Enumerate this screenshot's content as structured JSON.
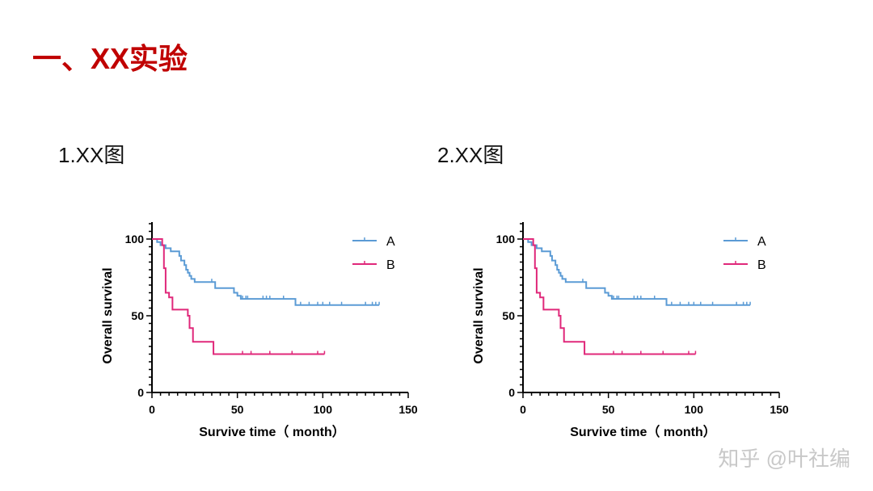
{
  "slide": {
    "title": "一、XX实验",
    "subtitles": [
      "1.XX图",
      "2.XX图"
    ],
    "watermark": "知乎 @叶社编"
  },
  "chart_data": [
    {
      "type": "line",
      "subtype": "kaplan-meier",
      "xlabel": "Survive time（ month）",
      "ylabel": "Overall survival",
      "xlim": [
        0,
        150
      ],
      "ylim": [
        0,
        110
      ],
      "xticks": [
        0,
        50,
        100,
        150
      ],
      "yticks": [
        0,
        50,
        100
      ],
      "grid": false,
      "legend": "top-right",
      "series": [
        {
          "name": "A",
          "color": "#5b9bd5",
          "steps": [
            [
              0,
              100
            ],
            [
              3,
              98
            ],
            [
              5,
              96
            ],
            [
              8,
              94
            ],
            [
              11,
              92
            ],
            [
              16,
              89
            ],
            [
              17,
              86
            ],
            [
              19,
              83
            ],
            [
              20,
              80
            ],
            [
              21,
              78
            ],
            [
              22,
              76
            ],
            [
              23,
              74
            ],
            [
              25,
              72
            ],
            [
              37,
              68
            ],
            [
              48,
              65
            ],
            [
              50,
              63
            ],
            [
              52,
              61
            ],
            [
              84,
              57
            ]
          ],
          "end": 133,
          "censored": [
            35,
            53,
            55,
            56,
            65,
            67,
            69,
            77,
            87,
            92,
            97,
            100,
            104,
            111,
            125,
            129,
            131,
            133
          ]
        },
        {
          "name": "B",
          "color": "#e0287a",
          "steps": [
            [
              0,
              100
            ],
            [
              6,
              96
            ],
            [
              7,
              81
            ],
            [
              8,
              65
            ],
            [
              10,
              62
            ],
            [
              12,
              54
            ],
            [
              21,
              50
            ],
            [
              22,
              42
            ],
            [
              24,
              33
            ],
            [
              36,
              25
            ]
          ],
          "end": 101,
          "censored": [
            53,
            58,
            69,
            82,
            97,
            101
          ]
        }
      ]
    },
    {
      "type": "line",
      "subtype": "kaplan-meier",
      "xlabel": "Survive time（ month）",
      "ylabel": "Overall survival",
      "xlim": [
        0,
        150
      ],
      "ylim": [
        0,
        110
      ],
      "xticks": [
        0,
        50,
        100,
        150
      ],
      "yticks": [
        0,
        50,
        100
      ],
      "grid": false,
      "legend": "top-right",
      "series": [
        {
          "name": "A",
          "color": "#5b9bd5",
          "steps": [
            [
              0,
              100
            ],
            [
              3,
              98
            ],
            [
              5,
              96
            ],
            [
              8,
              94
            ],
            [
              11,
              92
            ],
            [
              16,
              89
            ],
            [
              17,
              86
            ],
            [
              19,
              83
            ],
            [
              20,
              80
            ],
            [
              21,
              78
            ],
            [
              22,
              76
            ],
            [
              23,
              74
            ],
            [
              25,
              72
            ],
            [
              37,
              68
            ],
            [
              48,
              65
            ],
            [
              50,
              63
            ],
            [
              52,
              61
            ],
            [
              84,
              57
            ]
          ],
          "end": 133,
          "censored": [
            35,
            53,
            55,
            56,
            65,
            67,
            69,
            77,
            87,
            92,
            97,
            100,
            104,
            111,
            125,
            129,
            131,
            133
          ]
        },
        {
          "name": "B",
          "color": "#e0287a",
          "steps": [
            [
              0,
              100
            ],
            [
              6,
              96
            ],
            [
              7,
              81
            ],
            [
              8,
              65
            ],
            [
              10,
              62
            ],
            [
              12,
              54
            ],
            [
              21,
              50
            ],
            [
              22,
              42
            ],
            [
              24,
              33
            ],
            [
              36,
              25
            ]
          ],
          "end": 101,
          "censored": [
            53,
            58,
            69,
            82,
            97,
            101
          ]
        }
      ]
    }
  ]
}
